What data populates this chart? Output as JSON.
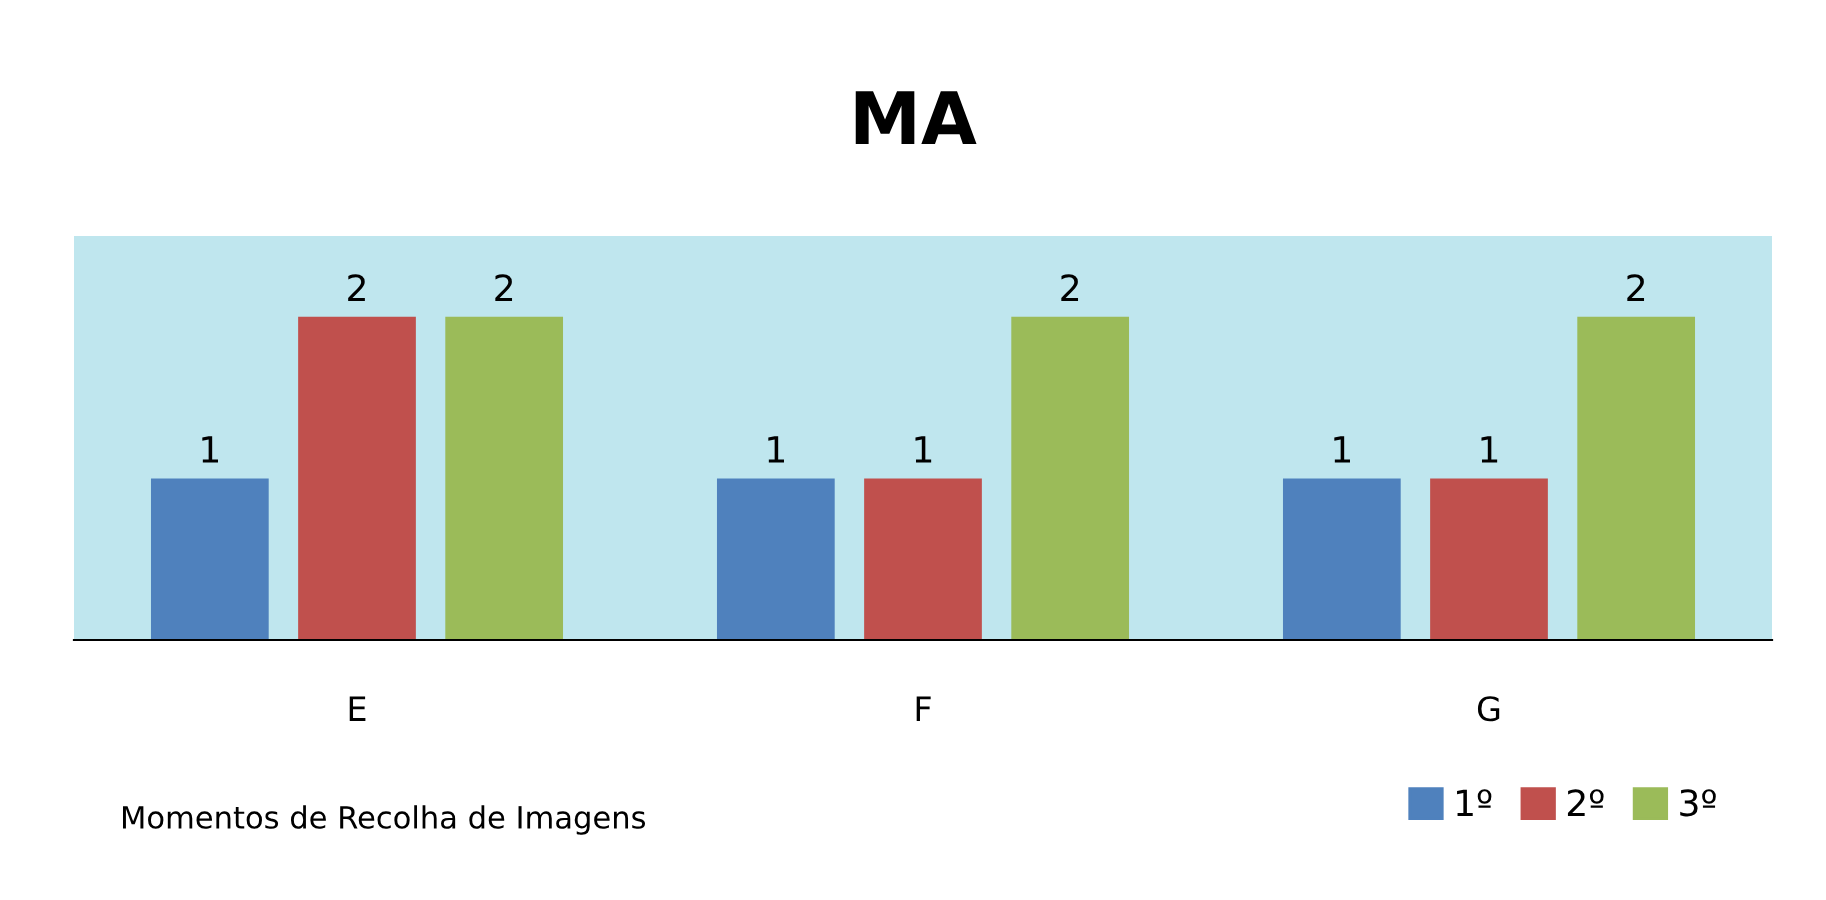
{
  "chart_data": {
    "type": "bar",
    "title": "MA",
    "xlabel": "Momentos de Recolha de Imagens",
    "categories": [
      "E",
      "F",
      "G"
    ],
    "series": [
      {
        "name": "1º",
        "color": "#4f81bd",
        "values": [
          1,
          1,
          1
        ]
      },
      {
        "name": "2º",
        "color": "#c0504d",
        "values": [
          2,
          1,
          1
        ]
      },
      {
        "name": "3º",
        "color": "#9bbb59",
        "values": [
          2,
          2,
          2
        ]
      }
    ],
    "ylim": [
      0,
      2.5
    ],
    "data_labels": true,
    "legend": "bottom right",
    "grid": false
  }
}
